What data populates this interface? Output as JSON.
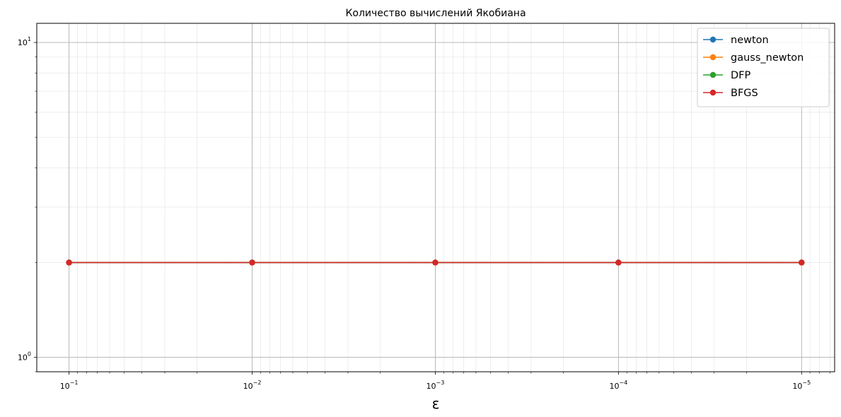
{
  "chart_data": {
    "type": "line",
    "title": "Количество вычислений Якобиана",
    "xlabel": "ε",
    "ylabel": "",
    "xscale": "log",
    "yscale": "log",
    "x_inverted": true,
    "xlim": [
      0.15,
      6.6e-06
    ],
    "ylim": [
      0.9,
      11.5
    ],
    "grid": true,
    "legend_position": "top-right",
    "x": [
      0.1,
      0.01,
      0.001,
      0.0001,
      1e-05
    ],
    "x_tick_labels": [
      {
        "value": 0.1,
        "base": "10",
        "exp": "−1"
      },
      {
        "value": 0.01,
        "base": "10",
        "exp": "−2"
      },
      {
        "value": 0.001,
        "base": "10",
        "exp": "−3"
      },
      {
        "value": 0.0001,
        "base": "10",
        "exp": "−4"
      },
      {
        "value": 1e-05,
        "base": "10",
        "exp": "−5"
      }
    ],
    "y_tick_labels": [
      {
        "value": 1,
        "base": "10",
        "exp": "0"
      },
      {
        "value": 10,
        "base": "10",
        "exp": "1"
      }
    ],
    "series": [
      {
        "name": "newton",
        "color": "#1f77b4",
        "values": [
          2,
          2,
          2,
          2,
          2
        ],
        "linestyle": "solid"
      },
      {
        "name": "gauss_newton",
        "color": "#ff7f0e",
        "values": [
          2,
          2,
          2,
          2,
          2
        ],
        "linestyle": "dashdot"
      },
      {
        "name": "DFP",
        "color": "#2ca02c",
        "values": [
          2,
          2,
          2,
          2,
          2
        ],
        "linestyle": "solid"
      },
      {
        "name": "BFGS",
        "color": "#d62728",
        "values": [
          2,
          2,
          2,
          2,
          2
        ],
        "linestyle": "solid"
      }
    ]
  }
}
